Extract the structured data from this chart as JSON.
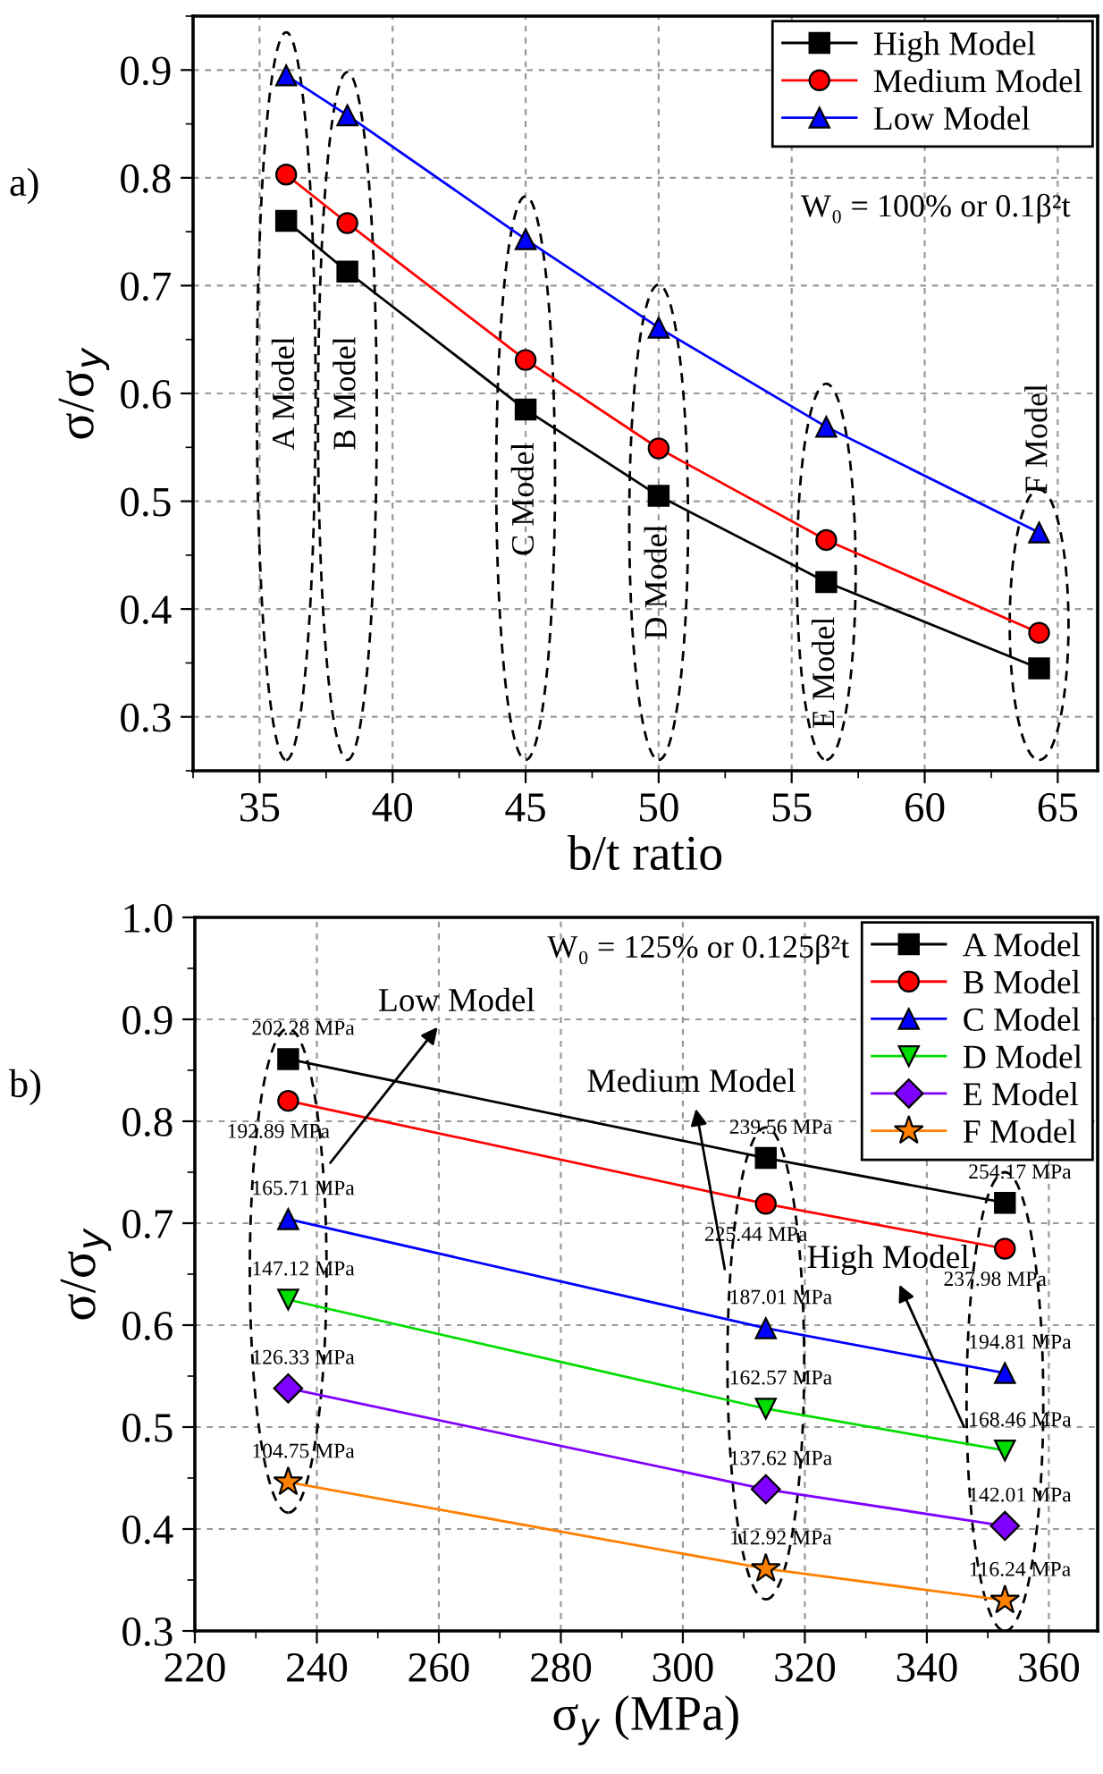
{
  "chart_data": [
    {
      "type": "line",
      "xlabel": "b/t ratio",
      "ylabel": "σ/σ$_{y}$",
      "x": [
        36,
        38.3,
        45,
        50,
        56.3,
        64.3
      ],
      "series": [
        {
          "name": "High Model",
          "color": "#000000",
          "marker": "square",
          "values": [
            0.76,
            0.713,
            0.585,
            0.505,
            0.425,
            0.345
          ]
        },
        {
          "name": "Medium Model",
          "color": "#ff0000",
          "marker": "circle",
          "values": [
            0.803,
            0.758,
            0.631,
            0.549,
            0.464,
            0.378
          ]
        },
        {
          "name": "Low Model",
          "color": "#0000ff",
          "marker": "triangle",
          "values": [
            0.895,
            0.858,
            0.743,
            0.661,
            0.569,
            0.471
          ]
        }
      ],
      "xlim": [
        32.5,
        66.5
      ],
      "xticks": [
        35,
        40,
        45,
        50,
        55,
        60,
        65
      ],
      "ylim": [
        0.25,
        0.95
      ],
      "yticks": [
        0.3,
        0.4,
        0.5,
        0.6,
        0.7,
        0.8,
        0.9
      ],
      "grid": true,
      "legend": "top right",
      "annotations": [
        "a)",
        "W₀ = 100% or 0.1β²t",
        "A Model",
        "B Model",
        "C Model",
        "D Model",
        "E Model",
        "F Model"
      ]
    },
    {
      "type": "line",
      "xlabel": "σ$_{y}$ (MPa)",
      "ylabel": "σ/σ$_{y}$",
      "x": [
        235.3,
        313.6,
        352.8
      ],
      "series": [
        {
          "name": "A Model",
          "color": "#000000",
          "marker": "square",
          "values": [
            0.861,
            0.764,
            0.72
          ]
        },
        {
          "name": "B Model",
          "color": "#ff0000",
          "marker": "circle",
          "values": [
            0.82,
            0.719,
            0.675
          ]
        },
        {
          "name": "C Model",
          "color": "#0000ff",
          "marker": "triangle",
          "values": [
            0.704,
            0.597,
            0.553
          ]
        },
        {
          "name": "D Model",
          "color": "#00dd00",
          "marker": "triangle_down",
          "values": [
            0.625,
            0.518,
            0.477
          ]
        },
        {
          "name": "E Model",
          "color": "#8000ff",
          "marker": "diamond",
          "values": [
            0.538,
            0.439,
            0.403
          ]
        },
        {
          "name": "F Model",
          "color": "#ff8000",
          "marker": "star",
          "values": [
            0.446,
            0.361,
            0.33
          ]
        }
      ],
      "xlim": [
        220,
        368
      ],
      "xticks": [
        220,
        240,
        260,
        280,
        300,
        320,
        340,
        360
      ],
      "ylim": [
        0.3,
        1.0
      ],
      "yticks": [
        0.3,
        0.4,
        0.5,
        0.6,
        0.7,
        0.8,
        0.9,
        {
          "value": 1.0,
          "label": "1.0"
        }
      ],
      "grid": true,
      "legend": "top right",
      "annotations": [
        "b)",
        "W₀ = 125% or 0.125β²t",
        "Low Model",
        "Medium Model",
        "High Model",
        {
          "text": "202.28 MPa",
          "x": 235.3,
          "y": 0.861
        },
        {
          "text": "239.56 MPa",
          "x": 313.6,
          "y": 0.764
        },
        {
          "text": "254.17 MPa",
          "x": 352.8,
          "y": 0.72
        },
        {
          "text": "192.89 MPa",
          "x": 235.3,
          "y": 0.82
        },
        {
          "text": "225.44 MPa",
          "x": 313.6,
          "y": 0.719
        },
        {
          "text": "237.98 MPa",
          "x": 352.8,
          "y": 0.675
        },
        {
          "text": "165.71 MPa",
          "x": 235.3,
          "y": 0.704
        },
        {
          "text": "187.01 MPa",
          "x": 313.6,
          "y": 0.597
        },
        {
          "text": "194.81 MPa",
          "x": 352.8,
          "y": 0.553
        },
        {
          "text": "147.12 MPa",
          "x": 235.3,
          "y": 0.625
        },
        {
          "text": "162.57 MPa",
          "x": 313.6,
          "y": 0.518
        },
        {
          "text": "168.46 MPa",
          "x": 352.8,
          "y": 0.477
        },
        {
          "text": "126.33 MPa",
          "x": 235.3,
          "y": 0.538
        },
        {
          "text": "137.62 MPa",
          "x": 313.6,
          "y": 0.439
        },
        {
          "text": "142.01 MPa",
          "x": 352.8,
          "y": 0.403
        },
        {
          "text": "104.75 MPa",
          "x": 235.3,
          "y": 0.446
        },
        {
          "text": "112.92 MPa",
          "x": 313.6,
          "y": 0.361
        },
        {
          "text": "116.24 MPa",
          "x": 352.8,
          "y": 0.33
        }
      ]
    }
  ]
}
